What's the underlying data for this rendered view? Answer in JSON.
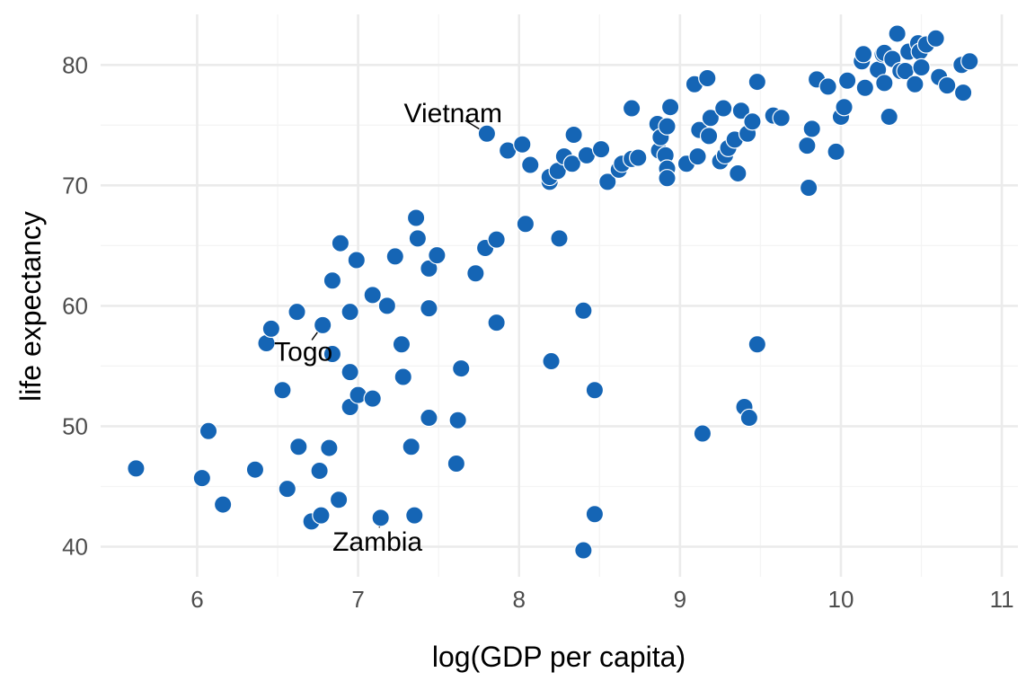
{
  "chart_data": {
    "type": "scatter",
    "title": "",
    "xlabel": "log(GDP per capita)",
    "ylabel": "life expectancy",
    "xlim": [
      5.4,
      11.1
    ],
    "ylim": [
      37.5,
      84.2
    ],
    "xticks": [
      6,
      7,
      8,
      9,
      10,
      11
    ],
    "yticks": [
      40,
      50,
      60,
      70,
      80
    ],
    "xtick_labels": [
      "6",
      "7",
      "8",
      "9",
      "10",
      "11"
    ],
    "ytick_labels": [
      "40",
      "50",
      "60",
      "70",
      "80"
    ],
    "grid": true,
    "legend": "none",
    "point_color": "#1565b5",
    "points": [
      {
        "x": 5.62,
        "y": 46.5
      },
      {
        "x": 6.03,
        "y": 45.7
      },
      {
        "x": 6.07,
        "y": 49.6
      },
      {
        "x": 6.16,
        "y": 43.5
      },
      {
        "x": 6.36,
        "y": 46.4
      },
      {
        "x": 6.43,
        "y": 56.9
      },
      {
        "x": 6.46,
        "y": 58.1
      },
      {
        "x": 6.53,
        "y": 53.0
      },
      {
        "x": 6.56,
        "y": 44.8
      },
      {
        "x": 6.62,
        "y": 59.5
      },
      {
        "x": 6.63,
        "y": 48.3
      },
      {
        "x": 6.71,
        "y": 42.1
      },
      {
        "x": 6.76,
        "y": 46.3
      },
      {
        "x": 6.77,
        "y": 42.6
      },
      {
        "x": 6.78,
        "y": 58.4
      },
      {
        "x": 6.82,
        "y": 48.2
      },
      {
        "x": 6.84,
        "y": 62.1
      },
      {
        "x": 6.84,
        "y": 56.0
      },
      {
        "x": 6.88,
        "y": 43.9
      },
      {
        "x": 6.89,
        "y": 65.2
      },
      {
        "x": 6.95,
        "y": 59.5
      },
      {
        "x": 6.95,
        "y": 54.5
      },
      {
        "x": 6.95,
        "y": 51.6
      },
      {
        "x": 6.99,
        "y": 63.8
      },
      {
        "x": 7.0,
        "y": 52.6
      },
      {
        "x": 7.09,
        "y": 52.3
      },
      {
        "x": 7.09,
        "y": 60.9
      },
      {
        "x": 7.14,
        "y": 42.4
      },
      {
        "x": 7.18,
        "y": 60.0
      },
      {
        "x": 7.23,
        "y": 64.1
      },
      {
        "x": 7.27,
        "y": 56.8
      },
      {
        "x": 7.28,
        "y": 54.1
      },
      {
        "x": 7.33,
        "y": 48.3
      },
      {
        "x": 7.35,
        "y": 42.6
      },
      {
        "x": 7.36,
        "y": 67.3
      },
      {
        "x": 7.37,
        "y": 65.6
      },
      {
        "x": 7.44,
        "y": 50.7
      },
      {
        "x": 7.44,
        "y": 63.1
      },
      {
        "x": 7.44,
        "y": 59.8
      },
      {
        "x": 7.49,
        "y": 64.2
      },
      {
        "x": 7.61,
        "y": 46.9
      },
      {
        "x": 7.62,
        "y": 50.5
      },
      {
        "x": 7.64,
        "y": 54.8
      },
      {
        "x": 7.73,
        "y": 62.7
      },
      {
        "x": 7.79,
        "y": 64.8
      },
      {
        "x": 7.8,
        "y": 74.3
      },
      {
        "x": 7.86,
        "y": 58.6
      },
      {
        "x": 7.86,
        "y": 65.5
      },
      {
        "x": 7.93,
        "y": 72.9
      },
      {
        "x": 8.02,
        "y": 73.4
      },
      {
        "x": 8.04,
        "y": 66.8
      },
      {
        "x": 8.07,
        "y": 71.7
      },
      {
        "x": 8.19,
        "y": 70.3
      },
      {
        "x": 8.19,
        "y": 70.7
      },
      {
        "x": 8.2,
        "y": 55.4
      },
      {
        "x": 8.24,
        "y": 71.2
      },
      {
        "x": 8.25,
        "y": 65.6
      },
      {
        "x": 8.28,
        "y": 72.4
      },
      {
        "x": 8.33,
        "y": 71.8
      },
      {
        "x": 8.34,
        "y": 74.2
      },
      {
        "x": 8.4,
        "y": 59.6
      },
      {
        "x": 8.4,
        "y": 39.7
      },
      {
        "x": 8.42,
        "y": 72.5
      },
      {
        "x": 8.47,
        "y": 42.7
      },
      {
        "x": 8.47,
        "y": 53.0
      },
      {
        "x": 8.51,
        "y": 73.0
      },
      {
        "x": 8.55,
        "y": 70.3
      },
      {
        "x": 8.62,
        "y": 71.3
      },
      {
        "x": 8.64,
        "y": 71.8
      },
      {
        "x": 8.7,
        "y": 72.2
      },
      {
        "x": 8.7,
        "y": 76.4
      },
      {
        "x": 8.74,
        "y": 72.3
      },
      {
        "x": 8.86,
        "y": 75.1
      },
      {
        "x": 8.87,
        "y": 72.9
      },
      {
        "x": 8.88,
        "y": 74.0
      },
      {
        "x": 8.91,
        "y": 72.5
      },
      {
        "x": 8.92,
        "y": 71.4
      },
      {
        "x": 8.92,
        "y": 74.9
      },
      {
        "x": 8.92,
        "y": 70.6
      },
      {
        "x": 8.94,
        "y": 76.5
      },
      {
        "x": 9.04,
        "y": 71.8
      },
      {
        "x": 9.09,
        "y": 78.4
      },
      {
        "x": 9.11,
        "y": 72.4
      },
      {
        "x": 9.12,
        "y": 74.6
      },
      {
        "x": 9.14,
        "y": 49.4
      },
      {
        "x": 9.17,
        "y": 78.9
      },
      {
        "x": 9.18,
        "y": 74.1
      },
      {
        "x": 9.19,
        "y": 75.6
      },
      {
        "x": 9.25,
        "y": 72.0
      },
      {
        "x": 9.27,
        "y": 76.4
      },
      {
        "x": 9.28,
        "y": 72.5
      },
      {
        "x": 9.3,
        "y": 73.1
      },
      {
        "x": 9.34,
        "y": 73.8
      },
      {
        "x": 9.36,
        "y": 71.0
      },
      {
        "x": 9.38,
        "y": 76.2
      },
      {
        "x": 9.4,
        "y": 51.6
      },
      {
        "x": 9.42,
        "y": 74.3
      },
      {
        "x": 9.43,
        "y": 50.7
      },
      {
        "x": 9.45,
        "y": 75.3
      },
      {
        "x": 9.48,
        "y": 78.6
      },
      {
        "x": 9.48,
        "y": 56.8
      },
      {
        "x": 9.58,
        "y": 75.8
      },
      {
        "x": 9.63,
        "y": 75.6
      },
      {
        "x": 9.79,
        "y": 73.3
      },
      {
        "x": 9.8,
        "y": 69.8
      },
      {
        "x": 9.82,
        "y": 74.7
      },
      {
        "x": 9.85,
        "y": 78.8
      },
      {
        "x": 9.92,
        "y": 78.2
      },
      {
        "x": 9.97,
        "y": 72.8
      },
      {
        "x": 10.0,
        "y": 75.7
      },
      {
        "x": 10.02,
        "y": 76.5
      },
      {
        "x": 10.04,
        "y": 78.7
      },
      {
        "x": 10.13,
        "y": 80.3
      },
      {
        "x": 10.14,
        "y": 80.9
      },
      {
        "x": 10.15,
        "y": 78.1
      },
      {
        "x": 10.23,
        "y": 79.6
      },
      {
        "x": 10.26,
        "y": 80.9
      },
      {
        "x": 10.27,
        "y": 78.5
      },
      {
        "x": 10.27,
        "y": 81.0
      },
      {
        "x": 10.3,
        "y": 75.7
      },
      {
        "x": 10.32,
        "y": 80.5
      },
      {
        "x": 10.35,
        "y": 82.6
      },
      {
        "x": 10.37,
        "y": 79.5
      },
      {
        "x": 10.4,
        "y": 79.5
      },
      {
        "x": 10.42,
        "y": 81.1
      },
      {
        "x": 10.46,
        "y": 78.4
      },
      {
        "x": 10.48,
        "y": 81.8
      },
      {
        "x": 10.49,
        "y": 81.1
      },
      {
        "x": 10.5,
        "y": 79.8
      },
      {
        "x": 10.53,
        "y": 81.7
      },
      {
        "x": 10.59,
        "y": 82.2
      },
      {
        "x": 10.61,
        "y": 79.0
      },
      {
        "x": 10.66,
        "y": 78.3
      },
      {
        "x": 10.75,
        "y": 80.0
      },
      {
        "x": 10.76,
        "y": 77.7
      },
      {
        "x": 10.8,
        "y": 80.3
      }
    ],
    "annotations": [
      {
        "label": "Vietnam",
        "x": 7.8,
        "y": 74.3,
        "text_x": 7.59,
        "text_y": 76.0
      },
      {
        "label": "Togo",
        "x": 6.78,
        "y": 58.4,
        "text_x": 6.66,
        "text_y": 56.2
      },
      {
        "label": "Zambia",
        "x": 7.14,
        "y": 42.4,
        "text_x": 7.12,
        "text_y": 40.4
      }
    ]
  }
}
